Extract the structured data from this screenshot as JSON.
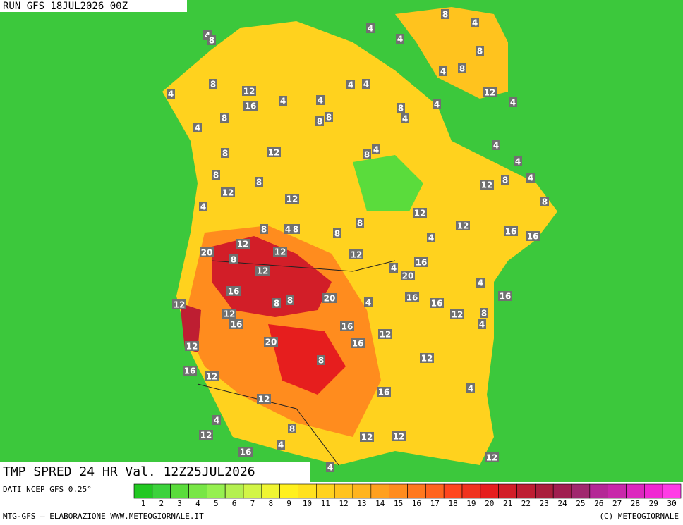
{
  "header": {
    "run": "RUN GFS 18JUL2026 00Z",
    "product": "TMP SPRED 24 HR Val. 12Z25JUL2026",
    "source": "DATI NCEP GFS 0.25°",
    "credit": "MTG-GFS — ELABORAZIONE WWW.METEOGIORNALE.IT",
    "copyright": "(C) METEOGIORNALE"
  },
  "map": {
    "labels": [
      8,
      4,
      4,
      4,
      8,
      4,
      8,
      8,
      4,
      8,
      4,
      4,
      12,
      12,
      4,
      4,
      16,
      8,
      4,
      4,
      4,
      8,
      8,
      8,
      4,
      4,
      4,
      8,
      12,
      8,
      4,
      4,
      8,
      4,
      8,
      12,
      8,
      12,
      12,
      8,
      4,
      12,
      8,
      12,
      8,
      4,
      8,
      8,
      4,
      16,
      16,
      12,
      12,
      20,
      12,
      8,
      16,
      4,
      12,
      20,
      4,
      16,
      16,
      20,
      8,
      8,
      4,
      16,
      16,
      12,
      12,
      12,
      8,
      16,
      4,
      16,
      12,
      20,
      16,
      12,
      8,
      12,
      16,
      12,
      16,
      4,
      12,
      4,
      8,
      12,
      12,
      12,
      4,
      16,
      12,
      4
    ]
  },
  "scale": {
    "values": [
      1,
      2,
      3,
      4,
      5,
      6,
      7,
      8,
      9,
      10,
      11,
      12,
      13,
      14,
      15,
      16,
      17,
      18,
      19,
      20,
      21,
      22,
      23,
      24,
      25,
      26,
      27,
      28,
      29,
      30
    ],
    "colors": [
      "#22c822",
      "#3cd23c",
      "#5adc3c",
      "#78e646",
      "#96f050",
      "#b4f050",
      "#d2f546",
      "#f0f532",
      "#fff01e",
      "#ffe11e",
      "#ffd21e",
      "#ffc31e",
      "#ffb41e",
      "#ffa01e",
      "#ff8c1e",
      "#ff781e",
      "#ff641e",
      "#ff461e",
      "#f0321e",
      "#e61e1e",
      "#d21e28",
      "#be1e32",
      "#aa1e3c",
      "#a01e50",
      "#a0286e",
      "#b42896",
      "#c828aa",
      "#dc28be",
      "#f028d2",
      "#ff3ce6"
    ]
  }
}
